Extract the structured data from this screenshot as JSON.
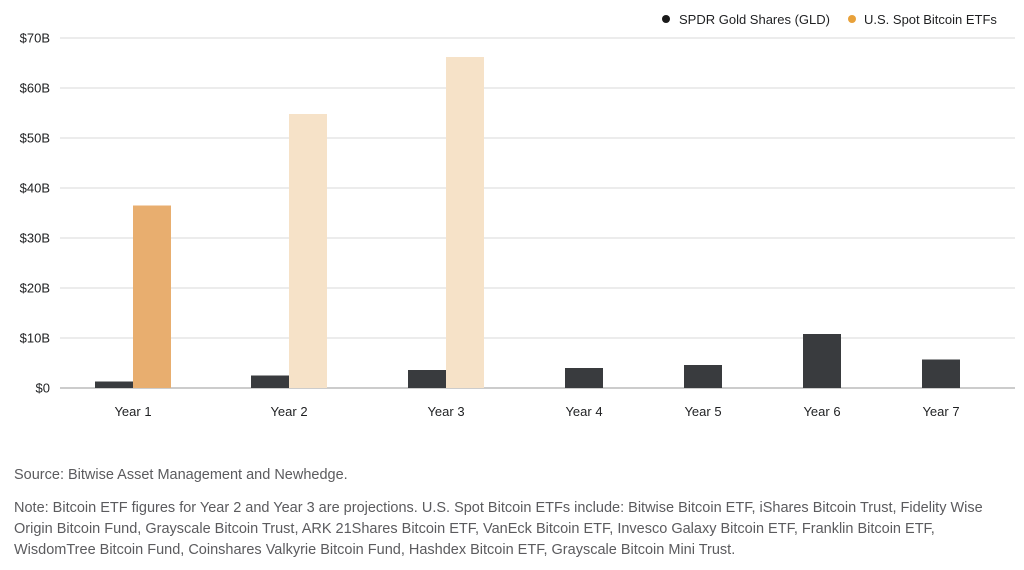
{
  "chart_data": {
    "type": "bar",
    "categories": [
      "Year 1",
      "Year 2",
      "Year 3",
      "Year 4",
      "Year 5",
      "Year 6",
      "Year 7"
    ],
    "series": [
      {
        "name": "SPDR Gold Shares (GLD)",
        "values": [
          1.3,
          2.5,
          3.6,
          4.0,
          4.6,
          10.8,
          5.7
        ],
        "color": "#393b3e"
      },
      {
        "name": "U.S. Spot Bitcoin ETFs",
        "values": [
          36.5,
          54.8,
          66.2,
          null,
          null,
          null,
          null
        ],
        "color": "#e8ae6f",
        "projection_color": "#f6e2c8",
        "projected_categories": [
          "Year 2",
          "Year 3"
        ]
      }
    ],
    "yticks": [
      "$0",
      "$10B",
      "$20B",
      "$30B",
      "$40B",
      "$50B",
      "$60B",
      "$70B"
    ],
    "ylim": [
      0,
      70
    ],
    "grid": true,
    "legend": "top-right",
    "legend_dot_colors": [
      "#1a1a1a",
      "#e8a13a"
    ]
  },
  "footer": {
    "source": "Source: Bitwise Asset Management and Newhedge.",
    "note": "Note: Bitcoin ETF figures for Year 2 and Year 3 are projections. U.S. Spot Bitcoin ETFs include: Bitwise Bitcoin ETF, iShares Bitcoin Trust, Fidelity Wise Origin Bitcoin Fund, Grayscale Bitcoin Trust, ARK 21Shares Bitcoin ETF, VanEck Bitcoin ETF, Invesco Galaxy Bitcoin ETF, Franklin Bitcoin ETF, WisdomTree Bitcoin Fund, Coinshares Valkyrie Bitcoin Fund, Hashdex Bitcoin ETF, Grayscale Bitcoin Mini Trust."
  }
}
